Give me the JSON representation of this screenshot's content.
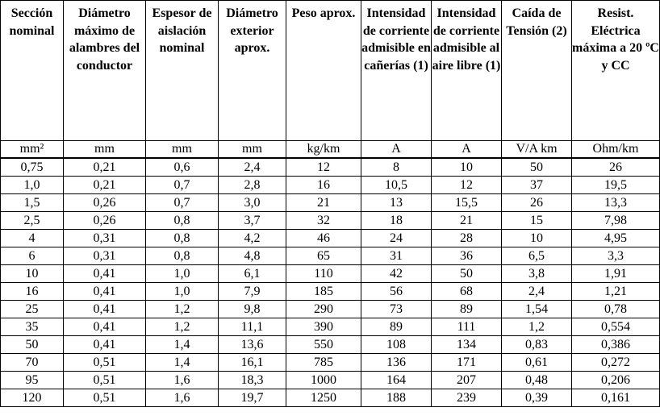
{
  "headers": [
    "Sección nominal",
    "Diámetro máximo de alambres del conductor",
    "Espesor de aislación nominal",
    "Diámetro exterior aprox.",
    "Peso aprox.",
    "Intensidad de corriente admisible en cañerías (1)",
    "Intensidad de corriente admisible al aire libre (1)",
    "Caída de Tensión (2)",
    "Resist. Eléctrica máxima a 20 ºC y CC"
  ],
  "units": [
    "mm²",
    "mm",
    "mm",
    "mm",
    "kg/km",
    "A",
    "A",
    "V/A km",
    "Ohm/km"
  ],
  "rows": [
    [
      "0,75",
      "0,21",
      "0,6",
      "2,4",
      "12",
      "8",
      "10",
      "50",
      "26"
    ],
    [
      "1,0",
      "0,21",
      "0,7",
      "2,8",
      "16",
      "10,5",
      "12",
      "37",
      "19,5"
    ],
    [
      "1,5",
      "0,26",
      "0,7",
      "3,0",
      "21",
      "13",
      "15,5",
      "26",
      "13,3"
    ],
    [
      "2,5",
      "0,26",
      "0,8",
      "3,7",
      "32",
      "18",
      "21",
      "15",
      "7,98"
    ],
    [
      "4",
      "0,31",
      "0,8",
      "4,2",
      "46",
      "24",
      "28",
      "10",
      "4,95"
    ],
    [
      "6",
      "0,31",
      "0,8",
      "4,8",
      "65",
      "31",
      "36",
      "6,5",
      "3,3"
    ],
    [
      "10",
      "0,41",
      "1,0",
      "6,1",
      "110",
      "42",
      "50",
      "3,8",
      "1,91"
    ],
    [
      "16",
      "0,41",
      "1,0",
      "7,9",
      "185",
      "56",
      "68",
      "2,4",
      "1,21"
    ],
    [
      "25",
      "0,41",
      "1,2",
      "9,8",
      "290",
      "73",
      "89",
      "1,54",
      "0,78"
    ],
    [
      "35",
      "0,41",
      "1,2",
      "11,1",
      "390",
      "89",
      "111",
      "1,2",
      "0,554"
    ],
    [
      "50",
      "0,41",
      "1,4",
      "13,6",
      "550",
      "108",
      "134",
      "0,83",
      "0,386"
    ],
    [
      "70",
      "0,51",
      "1,4",
      "16,1",
      "785",
      "136",
      "171",
      "0,61",
      "0,272"
    ],
    [
      "95",
      "0,51",
      "1,6",
      "18,3",
      "1000",
      "164",
      "207",
      "0,48",
      "0,206"
    ],
    [
      "120",
      "0,51",
      "1,6",
      "19,7",
      "1250",
      "188",
      "239",
      "0,39",
      "0,161"
    ]
  ]
}
